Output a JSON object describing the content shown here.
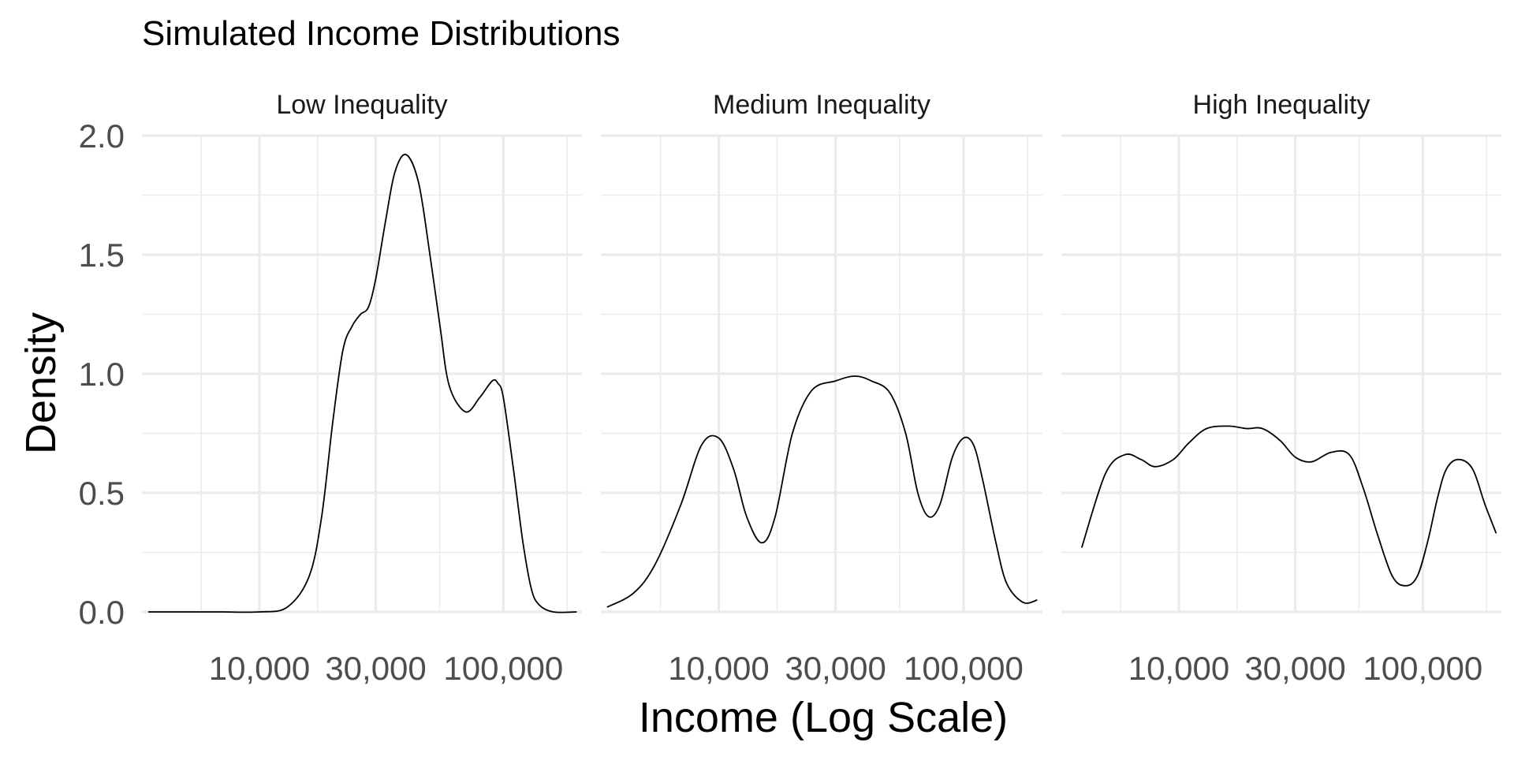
{
  "chart_data": {
    "type": "line",
    "title": "Simulated Income Distributions",
    "xlabel": "Income (Log Scale)",
    "ylabel": "Density",
    "x_scale": "log10",
    "ylim": [
      0,
      2.0
    ],
    "yticks": [
      0.0,
      0.5,
      1.0,
      1.5,
      2.0
    ],
    "ytick_labels": [
      "0.0",
      "0.5",
      "1.0",
      "1.5",
      "2.0"
    ],
    "xticks": [
      10000,
      30000,
      100000
    ],
    "xtick_labels": [
      "10,000",
      "30,000",
      "100,000"
    ],
    "grid": true,
    "line_color": "#000000",
    "grid_color": "#ebebeb",
    "panels": [
      {
        "strip": "Low Inequality",
        "xlim": [
          3300,
          210000
        ],
        "series": [
          {
            "x": [
              3500,
              5000,
              7000,
              10000,
              13000,
              16000,
              18000,
              20000,
              22000,
              24000,
              26000,
              28000,
              30000,
              33000,
              36000,
              40000,
              45000,
              50000,
              55000,
              60000,
              70000,
              80000,
              90000,
              95000,
              100000,
              110000,
              120000,
              130000,
              140000,
              160000,
              200000
            ],
            "y": [
              0.0,
              0.0,
              0.0,
              0.0,
              0.02,
              0.15,
              0.4,
              0.8,
              1.1,
              1.2,
              1.25,
              1.28,
              1.4,
              1.65,
              1.85,
              1.92,
              1.8,
              1.5,
              1.2,
              0.95,
              0.84,
              0.9,
              0.97,
              0.96,
              0.9,
              0.6,
              0.3,
              0.1,
              0.03,
              0.0,
              0.0
            ]
          }
        ]
      },
      {
        "strip": "Medium Inequality",
        "xlim": [
          3300,
          210000
        ],
        "series": [
          {
            "x": [
              3500,
              4500,
              5500,
              7000,
              8500,
              10000,
              11500,
              13000,
              15000,
              17000,
              20000,
              24000,
              30000,
              36000,
              42000,
              50000,
              58000,
              65000,
              72000,
              80000,
              90000,
              100000,
              110000,
              120000,
              135000,
              150000,
              175000,
              200000
            ],
            "y": [
              0.02,
              0.08,
              0.2,
              0.45,
              0.7,
              0.73,
              0.6,
              0.4,
              0.29,
              0.4,
              0.75,
              0.93,
              0.97,
              0.99,
              0.97,
              0.92,
              0.75,
              0.5,
              0.4,
              0.45,
              0.65,
              0.73,
              0.7,
              0.55,
              0.3,
              0.12,
              0.04,
              0.05
            ]
          }
        ]
      },
      {
        "strip": "High Inequality",
        "xlim": [
          3300,
          210000
        ],
        "series": [
          {
            "x": [
              4000,
              5000,
              6000,
              7000,
              8000,
              9500,
              11000,
              13000,
              16000,
              19000,
              22000,
              26000,
              30000,
              35000,
              42000,
              50000,
              57000,
              65000,
              75000,
              85000,
              95000,
              105000,
              115000,
              125000,
              140000,
              160000,
              180000,
              200000
            ],
            "y": [
              0.27,
              0.58,
              0.66,
              0.64,
              0.61,
              0.64,
              0.71,
              0.77,
              0.78,
              0.77,
              0.77,
              0.72,
              0.65,
              0.63,
              0.67,
              0.66,
              0.52,
              0.33,
              0.15,
              0.11,
              0.15,
              0.3,
              0.48,
              0.6,
              0.64,
              0.6,
              0.45,
              0.33
            ]
          }
        ]
      }
    ]
  }
}
